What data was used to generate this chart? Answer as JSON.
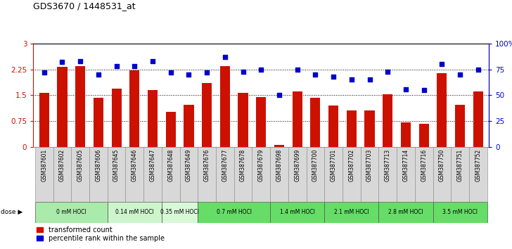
{
  "title": "GDS3670 / 1448531_at",
  "samples": [
    "GSM387601",
    "GSM387602",
    "GSM387605",
    "GSM387606",
    "GSM387645",
    "GSM387646",
    "GSM387647",
    "GSM387648",
    "GSM387649",
    "GSM387676",
    "GSM387677",
    "GSM387678",
    "GSM387679",
    "GSM387698",
    "GSM387699",
    "GSM387700",
    "GSM387701",
    "GSM387702",
    "GSM387703",
    "GSM387713",
    "GSM387714",
    "GSM387716",
    "GSM387750",
    "GSM387751",
    "GSM387752"
  ],
  "bar_values": [
    1.57,
    2.32,
    2.35,
    1.43,
    1.7,
    2.22,
    1.65,
    1.02,
    1.22,
    1.85,
    2.35,
    1.57,
    1.45,
    0.05,
    1.62,
    1.42,
    1.2,
    1.05,
    1.05,
    1.52,
    0.72,
    0.67,
    2.15,
    1.22,
    1.62
  ],
  "percentile_values": [
    72,
    82,
    83,
    70,
    78,
    78,
    83,
    72,
    70,
    72,
    87,
    73,
    75,
    50,
    75,
    70,
    68,
    65,
    65,
    73,
    56,
    55,
    80,
    70,
    75
  ],
  "dose_groups": [
    {
      "label": "0 mM HOCl",
      "start": 0,
      "end": 4,
      "color": "#aaeaaa"
    },
    {
      "label": "0.14 mM HOCl",
      "start": 4,
      "end": 7,
      "color": "#ccf5cc"
    },
    {
      "label": "0.35 mM HOCl",
      "start": 7,
      "end": 9,
      "color": "#d8f8d8"
    },
    {
      "label": "0.7 mM HOCl",
      "start": 9,
      "end": 13,
      "color": "#66dd66"
    },
    {
      "label": "1.4 mM HOCl",
      "start": 13,
      "end": 16,
      "color": "#66dd66"
    },
    {
      "label": "2.1 mM HOCl",
      "start": 16,
      "end": 19,
      "color": "#66dd66"
    },
    {
      "label": "2.8 mM HOCl",
      "start": 19,
      "end": 22,
      "color": "#66dd66"
    },
    {
      "label": "3.5 mM HOCl",
      "start": 22,
      "end": 25,
      "color": "#66dd66"
    }
  ],
  "bar_color": "#cc1100",
  "dot_color": "#0000cc",
  "ylim_left": [
    0,
    3
  ],
  "ylim_right": [
    0,
    100
  ],
  "yticks_left": [
    0,
    0.75,
    1.5,
    2.25,
    3
  ],
  "yticks_right": [
    0,
    25,
    50,
    75,
    100
  ],
  "dotted_lines": [
    0.75,
    1.5,
    2.25
  ],
  "plot_bg": "#ffffff",
  "label_cell_color": "#d8d8d8",
  "label_cell_border": "#888888"
}
